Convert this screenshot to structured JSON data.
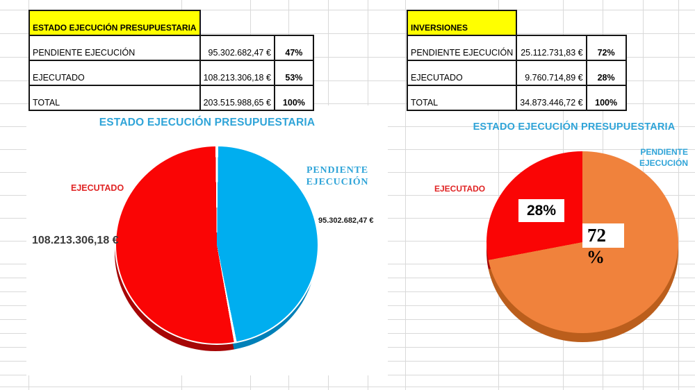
{
  "tables": [
    {
      "header": "ESTADO EJECUCIÓN PRESUPUESTARIA",
      "rows": [
        {
          "label": "PENDIENTE EJECUCIÓN",
          "value": "95.302.682,47 €",
          "pct": "47%"
        },
        {
          "label": "EJECUTADO",
          "value": "108.213.306,18 €",
          "pct": "53%"
        },
        {
          "label": "TOTAL",
          "value": "203.515.988,65 €",
          "pct": "100%"
        }
      ]
    },
    {
      "header": "INVERSIONES",
      "rows": [
        {
          "label": "PENDIENTE EJECUCIÓN",
          "value": "25.112.731,83 €",
          "pct": "72%"
        },
        {
          "label": "EJECUTADO",
          "value": "9.760.714,89 €",
          "pct": "28%"
        },
        {
          "label": "TOTAL",
          "value": "34.873.446,72 €",
          "pct": "100%"
        }
      ]
    }
  ],
  "chart_data": [
    {
      "type": "pie",
      "effect": "3d",
      "title": "ESTADO EJECUCIÓN PRESUPUESTARIA",
      "legend_position": "none",
      "series": [
        {
          "name": "PENDIENTE EJECUCIÓN",
          "pct": 47,
          "amount": "95.302.682,47 €",
          "color": "#00aeef",
          "side_color": "#0080b8"
        },
        {
          "name": "EJECUTADO",
          "pct": 53,
          "amount": "108.213.306,18 €",
          "color": "#fa0505",
          "side_color": "#a60606"
        }
      ]
    },
    {
      "type": "pie",
      "effect": "3d",
      "title": "ESTADO EJECUCIÓN PRESUPUESTARIA",
      "legend_position": "none",
      "series": [
        {
          "name": "PENDIENTE EJECUCIÓN",
          "pct": 72,
          "label_lines": [
            "72",
            "%"
          ],
          "color": "#f0823c",
          "side_color": "#bb5e1c"
        },
        {
          "name": "EJECUTADO",
          "pct": 28,
          "label": "28%",
          "color": "#fa0505",
          "side_color": "#a60606"
        }
      ]
    }
  ],
  "colors": {
    "accent_cyan": "#2fa4d8",
    "red": "#fa0505",
    "blue": "#00aeef",
    "orange": "#f0823c",
    "highlight_yellow": "#ffff00",
    "grid_line": "#d9d9d9"
  }
}
